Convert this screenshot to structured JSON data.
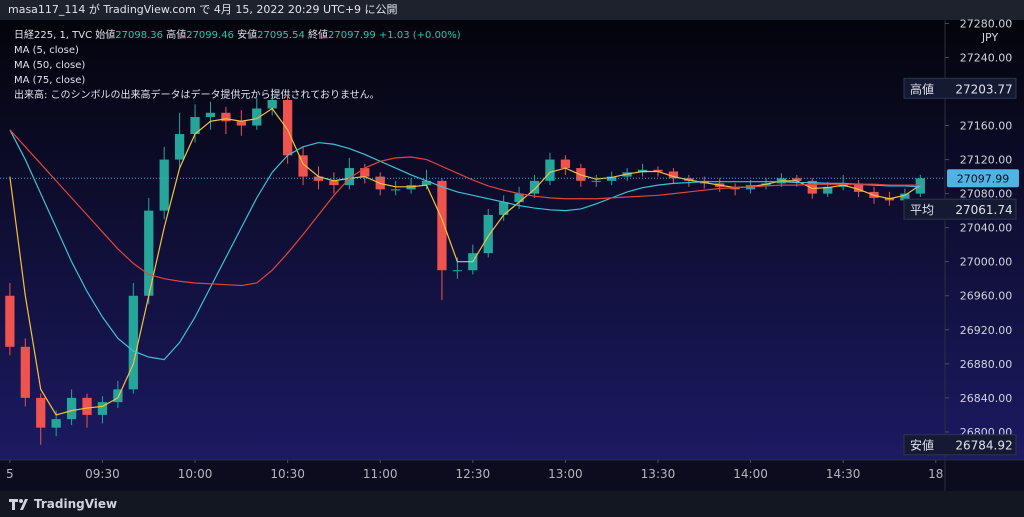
{
  "header": {
    "text": "masa117_114 が TradingView.com で 4月 15, 2022 20:29 UTC+9 に公開"
  },
  "footer": {
    "brand": "TradingView"
  },
  "chart_data": {
    "type": "candlestick",
    "symbol": "日経225, 1, TVC",
    "ohlc_legend": [
      {
        "label": "始値",
        "value": 27098.36
      },
      {
        "label": "高値",
        "value": 27099.46
      },
      {
        "label": "安値",
        "value": 27095.54
      },
      {
        "label": "終値",
        "value": 27097.99
      }
    ],
    "change": "+1.03 (+0.00%)",
    "volume_note": "出来高: このシンボルの出来高データはデータ提供元から提供されておりません。",
    "currency": "JPY",
    "up_color": "#26a69a",
    "down_color": "#ef5350",
    "x": [
      0,
      5,
      10,
      15,
      20,
      25,
      30,
      35,
      40,
      45,
      50,
      55,
      60,
      65,
      70,
      75,
      80,
      85,
      90,
      95,
      100,
      105,
      110,
      115,
      120,
      125,
      130,
      135,
      140,
      145,
      150,
      155,
      160,
      165,
      170,
      175,
      180,
      185,
      190,
      195,
      200,
      205,
      210,
      215,
      220,
      225,
      230,
      235,
      240,
      245,
      250,
      255,
      260,
      265,
      270,
      275,
      280,
      285,
      290,
      295
    ],
    "open": [
      26960,
      26900,
      26840,
      26805,
      26815,
      26840,
      26820,
      26835,
      26850,
      26960,
      27060,
      27120,
      27150,
      27170,
      27175,
      27165,
      27160,
      27180,
      27190,
      27125,
      27100,
      27095,
      27090,
      27110,
      27100,
      27085,
      27085,
      27090,
      27095,
      26990,
      26990,
      27010,
      27055,
      27070,
      27080,
      27095,
      27120,
      27110,
      27095,
      27095,
      27100,
      27105,
      27108,
      27106,
      27098,
      27095,
      27092,
      27088,
      27085,
      27090,
      27092,
      27098,
      27095,
      27080,
      27088,
      27092,
      27082,
      27075,
      27072,
      27080
    ],
    "high": [
      26975,
      26910,
      26845,
      26825,
      26850,
      26845,
      26842,
      26860,
      26975,
      27075,
      27135,
      27175,
      27185,
      27188,
      27182,
      27178,
      27192,
      27203.77,
      27195,
      27135,
      27112,
      27105,
      27122,
      27115,
      27105,
      27095,
      27098,
      27108,
      27098,
      27005,
      27020,
      27062,
      27078,
      27088,
      27102,
      27128,
      27125,
      27115,
      27102,
      27106,
      27110,
      27115,
      27112,
      27110,
      27102,
      27100,
      27098,
      27092,
      27096,
      27098,
      27104,
      27102,
      27098,
      27094,
      27102,
      27096,
      27088,
      27082,
      27086,
      27102
    ],
    "low": [
      26890,
      26830,
      26784.92,
      26795,
      26808,
      26805,
      26810,
      26828,
      26845,
      26950,
      27050,
      27110,
      27140,
      27155,
      27150,
      27148,
      27155,
      27172,
      27115,
      27090,
      27085,
      27080,
      27085,
      27092,
      27078,
      27078,
      27080,
      27085,
      26955,
      26980,
      26985,
      27005,
      27048,
      27062,
      27075,
      27090,
      27102,
      27088,
      27088,
      27090,
      27095,
      27100,
      27100,
      27092,
      27088,
      27086,
      27082,
      27078,
      27080,
      27085,
      27088,
      27088,
      27074,
      27076,
      27084,
      27076,
      27068,
      27066,
      27070,
      27076
    ],
    "close": [
      26900,
      26840,
      26805,
      26815,
      26840,
      26820,
      26835,
      26850,
      26960,
      27060,
      27120,
      27150,
      27170,
      27175,
      27165,
      27160,
      27180,
      27190,
      27125,
      27100,
      27095,
      27090,
      27110,
      27100,
      27085,
      27085,
      27090,
      27095,
      26990,
      26990,
      27010,
      27055,
      27070,
      27080,
      27095,
      27120,
      27110,
      27095,
      27095,
      27100,
      27105,
      27108,
      27106,
      27098,
      27095,
      27092,
      27088,
      27085,
      27090,
      27092,
      27098,
      27095,
      27080,
      27088,
      27092,
      27082,
      27075,
      27072,
      27080,
      27098
    ],
    "lines": [
      {
        "name": "MA (5, close)",
        "color": "#f5c13a",
        "values": [
          27100,
          26960,
          26850,
          26820,
          26825,
          26828,
          26830,
          26840,
          26880,
          26960,
          27040,
          27110,
          27150,
          27165,
          27168,
          27165,
          27168,
          27180,
          27155,
          27115,
          27100,
          27095,
          27098,
          27100,
          27092,
          27088,
          27088,
          27090,
          27050,
          27000,
          27000,
          27030,
          27055,
          27070,
          27085,
          27105,
          27110,
          27102,
          27097,
          27099,
          27103,
          27106,
          27106,
          27100,
          27096,
          27093,
          27090,
          27087,
          27088,
          27091,
          27095,
          27095,
          27086,
          27087,
          27090,
          27085,
          27078,
          27074,
          27078,
          27090
        ]
      },
      {
        "name": "MA (50, close)",
        "color": "#3ec1d3",
        "values": [
          27155,
          27120,
          27080,
          27040,
          27000,
          26965,
          26935,
          26910,
          26895,
          26888,
          26885,
          26905,
          26935,
          26970,
          27005,
          27040,
          27075,
          27105,
          27125,
          27135,
          27140,
          27138,
          27133,
          27126,
          27118,
          27110,
          27102,
          27095,
          27088,
          27082,
          27078,
          27074,
          27070,
          27066,
          27063,
          27061,
          27060,
          27062,
          27068,
          27075,
          27082,
          27087,
          27090,
          27092,
          27093,
          27094,
          27094,
          27094,
          27094,
          27094,
          27094,
          27093,
          27093,
          27092,
          27092,
          27091,
          27090,
          27089,
          27089,
          27088
        ]
      },
      {
        "name": "MA (75, close)",
        "color": "#e0443e",
        "values": [
          27155,
          27135,
          27115,
          27095,
          27075,
          27055,
          27035,
          27015,
          26998,
          26985,
          26980,
          26977,
          26975,
          26974,
          26973,
          26972,
          26975,
          26990,
          27010,
          27032,
          27055,
          27078,
          27098,
          27110,
          27118,
          27122,
          27123,
          27120,
          27112,
          27104,
          27096,
          27089,
          27084,
          27080,
          27077,
          27075,
          27074,
          27074,
          27074,
          27075,
          27076,
          27077,
          27078,
          27080,
          27082,
          27084,
          27086,
          27087,
          27088,
          27089,
          27090,
          27090,
          27091,
          27091,
          27091,
          27091,
          27091,
          27090,
          27090,
          27090
        ]
      }
    ],
    "xlim": [
      -3.2,
      303
    ],
    "xticks": [
      {
        "value": 0,
        "label": "5"
      },
      {
        "value": 30,
        "label": "09:30"
      },
      {
        "value": 60,
        "label": "10:00"
      },
      {
        "value": 90,
        "label": "10:30"
      },
      {
        "value": 120,
        "label": "11:00"
      },
      {
        "value": 150,
        "label": "12:30"
      },
      {
        "value": 180,
        "label": "13:00"
      },
      {
        "value": 210,
        "label": "13:30"
      },
      {
        "value": 240,
        "label": "14:00"
      },
      {
        "value": 270,
        "label": "14:30"
      },
      {
        "value": 300,
        "label": "18"
      }
    ],
    "ylim": [
      26767,
      27284
    ],
    "yticks": [
      {
        "value": 27280,
        "label": "27280.00"
      },
      {
        "value": 27240,
        "label": "27240.00"
      },
      {
        "value": 27160,
        "label": "27160.00"
      },
      {
        "value": 27120,
        "label": "27120.00"
      },
      {
        "value": 27080,
        "label": "27080.00"
      },
      {
        "value": 27040,
        "label": "27040.00"
      },
      {
        "value": 27000,
        "label": "27000.00"
      },
      {
        "value": 26960,
        "label": "26960.00"
      },
      {
        "value": 26920,
        "label": "26920.00"
      },
      {
        "value": 26880,
        "label": "26880.00"
      },
      {
        "value": 26840,
        "label": "26840.00"
      },
      {
        "value": 26800,
        "label": "26800.00"
      }
    ],
    "price_tags": [
      {
        "label": "高値",
        "value": 27203.77
      },
      {
        "label": "平均",
        "value": 27061.74
      },
      {
        "label": "安値",
        "value": 26784.92
      }
    ],
    "last_price": 27097.99
  }
}
